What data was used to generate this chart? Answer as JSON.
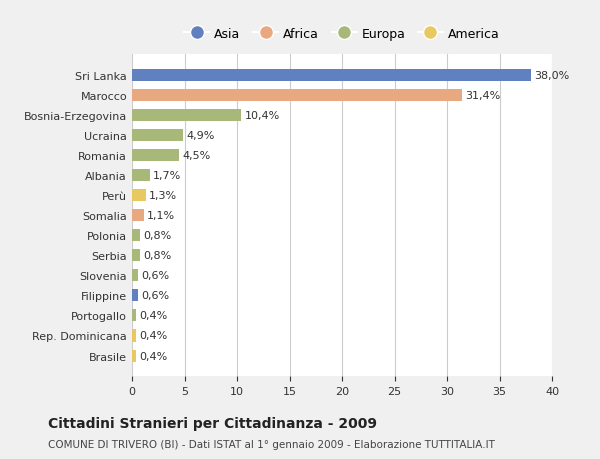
{
  "categories": [
    "Sri Lanka",
    "Marocco",
    "Bosnia-Erzegovina",
    "Ucraina",
    "Romania",
    "Albania",
    "Perù",
    "Somalia",
    "Polonia",
    "Serbia",
    "Slovenia",
    "Filippine",
    "Portogallo",
    "Rep. Dominicana",
    "Brasile"
  ],
  "values": [
    38.0,
    31.4,
    10.4,
    4.9,
    4.5,
    1.7,
    1.3,
    1.1,
    0.8,
    0.8,
    0.6,
    0.6,
    0.4,
    0.4,
    0.4
  ],
  "labels": [
    "38,0%",
    "31,4%",
    "10,4%",
    "4,9%",
    "4,5%",
    "1,7%",
    "1,3%",
    "1,1%",
    "0,8%",
    "0,8%",
    "0,6%",
    "0,6%",
    "0,4%",
    "0,4%",
    "0,4%"
  ],
  "continents": [
    "Asia",
    "Africa",
    "Europa",
    "Europa",
    "Europa",
    "Europa",
    "America",
    "Africa",
    "Europa",
    "Europa",
    "Europa",
    "Asia",
    "Europa",
    "America",
    "America"
  ],
  "continent_colors": {
    "Asia": "#6080c0",
    "Africa": "#e8a880",
    "Europa": "#a8b878",
    "America": "#e8c860"
  },
  "legend_order": [
    "Asia",
    "Africa",
    "Europa",
    "America"
  ],
  "xlim": [
    0,
    40
  ],
  "xticks": [
    0,
    5,
    10,
    15,
    20,
    25,
    30,
    35,
    40
  ],
  "title": "Cittadini Stranieri per Cittadinanza - 2009",
  "subtitle": "COMUNE DI TRIVERO (BI) - Dati ISTAT al 1° gennaio 2009 - Elaborazione TUTTITALIA.IT",
  "background_color": "#f0f0f0",
  "plot_background": "#ffffff",
  "grid_color": "#cccccc",
  "bar_height": 0.6
}
